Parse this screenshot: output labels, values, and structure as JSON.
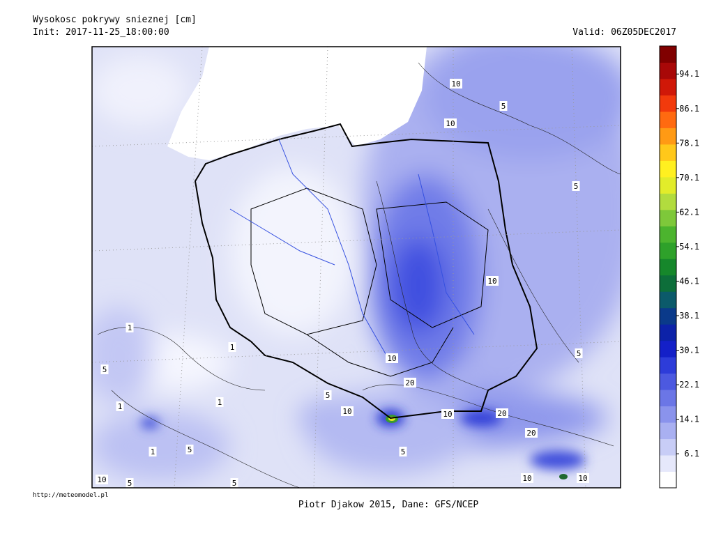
{
  "header": {
    "title": "Wysokosc pokrywy snieznej [cm]",
    "init": "Init: 2017-11-25_18:00:00",
    "valid": "Valid: 06Z05DEC2017"
  },
  "footer": {
    "url": "http://meteomodel.pl",
    "credit": "Piotr Djakow 2015, Dane: GFS/NCEP"
  },
  "colorbar": {
    "lim": [
      -1.8,
      100.6
    ],
    "ticks": [
      6.1,
      14.1,
      22.1,
      30.1,
      38.1,
      46.1,
      54.1,
      62.1,
      70.1,
      78.1,
      86.1,
      94.1
    ],
    "colors": [
      "#ffffff",
      "#e6e8fb",
      "#c8cdf6",
      "#a9b0f1",
      "#8a93ec",
      "#6b76e6",
      "#4c59e0",
      "#2d3cd9",
      "#1420c8",
      "#0c22a8",
      "#0a3a8a",
      "#0b5a6a",
      "#0d6e3a",
      "#16872b",
      "#2ea12a",
      "#4cb42e",
      "#7ec83a",
      "#b2dc3e",
      "#e2ec2a",
      "#fff020",
      "#ffc81a",
      "#ff9a14",
      "#ff6a10",
      "#f23a0c",
      "#d01808",
      "#a80808",
      "#800000"
    ]
  },
  "contour_labels": [
    "10",
    "5",
    "10",
    "5",
    "10",
    "5",
    "10",
    "20",
    "10",
    "10",
    "20",
    "20",
    "5",
    "1",
    "1",
    "5",
    "1",
    "1",
    "1",
    "5",
    "5",
    "10",
    "5",
    "5",
    "10",
    "10"
  ]
}
